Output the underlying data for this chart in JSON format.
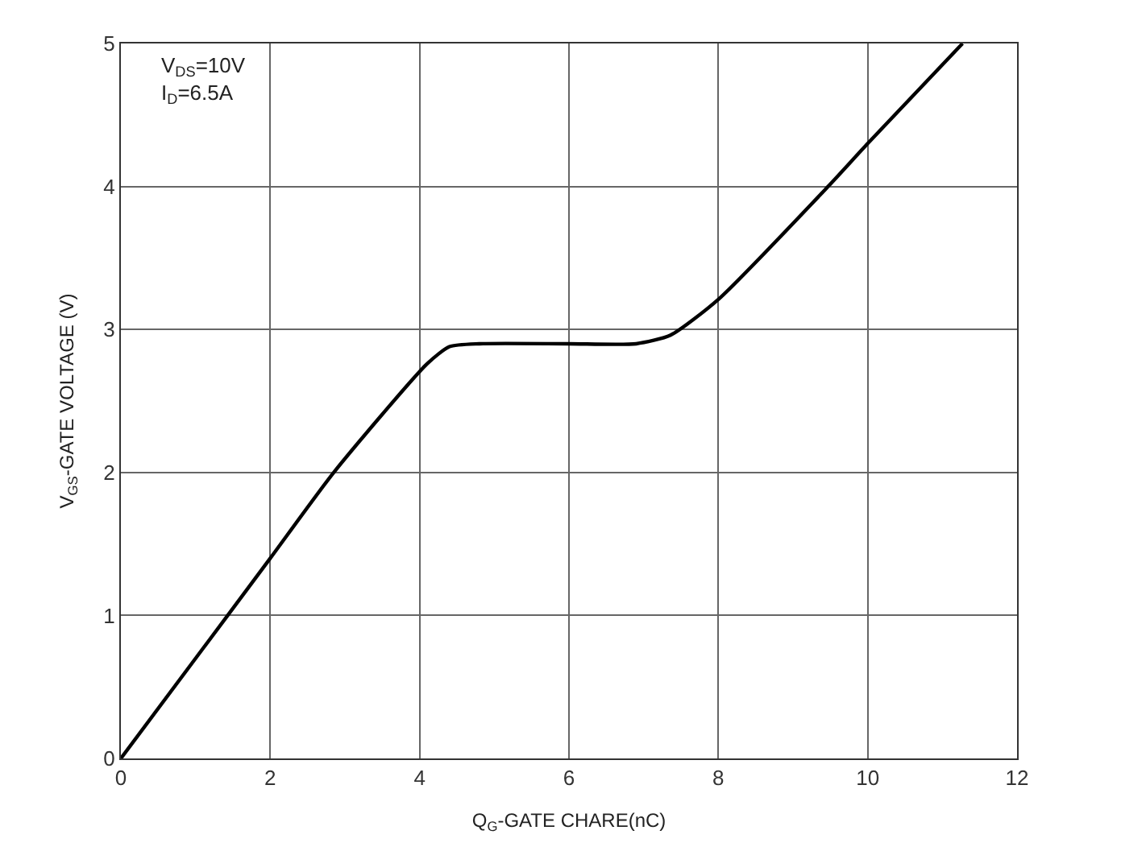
{
  "chart_data": {
    "type": "line",
    "xlabel": "Q$_{G}$-GATE CHARE(nC)",
    "ylabel": "V$_{GS}$-GATE VOLTAGE (V)",
    "x": [
      0,
      1.43,
      2,
      2.85,
      4.1,
      4.4,
      4.8,
      6,
      6.9,
      7.36,
      8,
      9.47,
      10,
      11.27
    ],
    "series": [
      {
        "color": "#000000",
        "values": [
          0,
          1,
          1.4,
          2,
          2.76,
          2.88,
          2.9,
          2.9,
          2.9,
          2.96,
          3.21,
          4,
          4.3,
          5
        ]
      }
    ],
    "xlim": [
      0,
      12
    ],
    "xticks": [
      0,
      2,
      4,
      6,
      8,
      10,
      12
    ],
    "ylim": [
      0,
      5
    ],
    "yticks": [
      0,
      1,
      2,
      3,
      4,
      5
    ],
    "grid": true,
    "legend": false,
    "marker": "none",
    "line_style": "solid",
    "annotations": [
      "V$_{DS}$=10V",
      "I$_{D}$=6.5A"
    ]
  }
}
